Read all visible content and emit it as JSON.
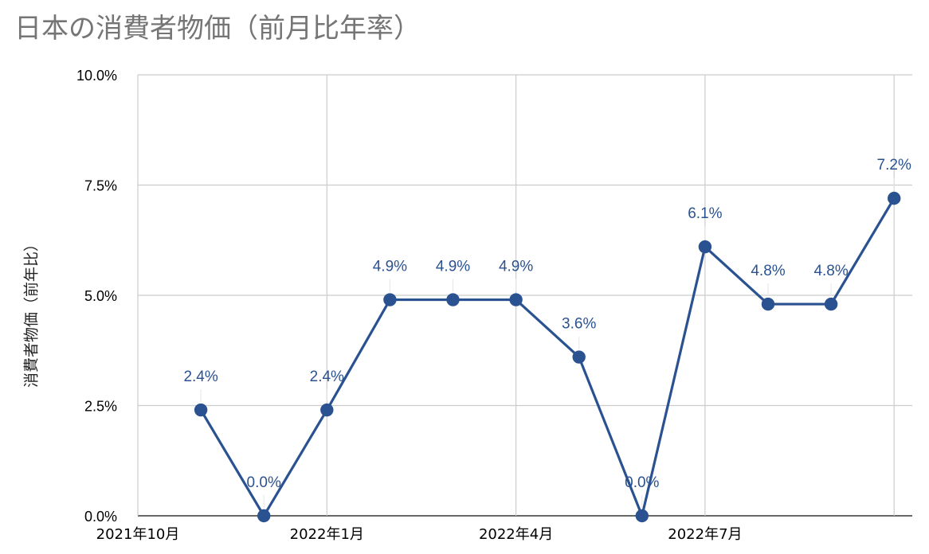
{
  "chart_data": {
    "type": "line",
    "title": "日本の消費者物価（前月比年率）",
    "xlabel": "",
    "ylabel": "消費者物価（前年比）",
    "ylim": [
      0,
      10
    ],
    "y_ticks": [
      "0.0%",
      "2.5%",
      "5.0%",
      "7.5%",
      "10.0%"
    ],
    "x_ticks": [
      "2021年10月",
      "2022年1月",
      "2022年4月",
      "2022年7月"
    ],
    "x": [
      "2021-11",
      "2021-12",
      "2022-01",
      "2022-02",
      "2022-03",
      "2022-04",
      "2022-05",
      "2022-06",
      "2022-07",
      "2022-08",
      "2022-09",
      "2022-10"
    ],
    "series": [
      {
        "values": [
          2.4,
          0.0,
          2.4,
          4.9,
          4.9,
          4.9,
          3.6,
          0.0,
          6.1,
          4.8,
          4.8,
          7.2
        ],
        "labels": [
          "2.4%",
          "0.0%",
          "2.4%",
          "4.9%",
          "4.9%",
          "4.9%",
          "3.6%",
          "0.0%",
          "6.1%",
          "4.8%",
          "4.8%",
          "7.2%"
        ]
      }
    ],
    "grid": true,
    "legend": "none",
    "line_color": "#2a5291"
  }
}
